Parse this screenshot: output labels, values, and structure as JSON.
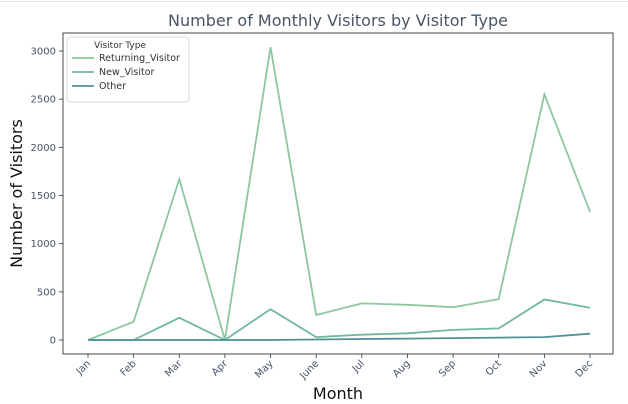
{
  "chart_data": {
    "type": "line",
    "title": "Number of Monthly Visitors by Visitor Type",
    "xlabel": "Month",
    "ylabel": "Number of Visitors",
    "categories": [
      "Jan",
      "Feb",
      "Mar",
      "Apr",
      "May",
      "June",
      "Jul",
      "Aug",
      "Sep",
      "Oct",
      "Nov",
      "Dec"
    ],
    "ylim": [
      -130,
      3190
    ],
    "yticks": [
      0,
      500,
      1000,
      1500,
      2000,
      2500,
      3000
    ],
    "grid": false,
    "legend": {
      "title": "Visitor Type",
      "placement": "top-left"
    },
    "series": [
      {
        "name": "Returning_Visitor",
        "color": "#8cc7a1",
        "values": [
          0,
          190,
          1670,
          0,
          3040,
          260,
          380,
          365,
          340,
          425,
          2550,
          1330
        ]
      },
      {
        "name": "New_Visitor",
        "color": "#70b79f",
        "values": [
          0,
          0,
          230,
          0,
          320,
          30,
          55,
          70,
          105,
          120,
          420,
          335
        ]
      },
      {
        "name": "Other",
        "color": "#4f8f97",
        "values": [
          0,
          0,
          0,
          0,
          0,
          5,
          10,
          15,
          20,
          25,
          30,
          65
        ]
      }
    ]
  }
}
